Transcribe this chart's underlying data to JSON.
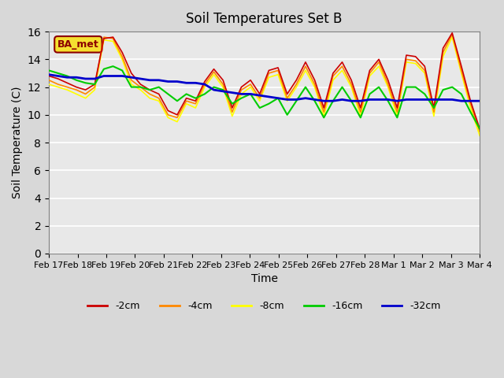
{
  "title": "Soil Temperatures Set B",
  "xlabel": "Time",
  "ylabel": "Soil Temperature (C)",
  "ylim": [
    0,
    16
  ],
  "yticks": [
    0,
    2,
    4,
    6,
    8,
    10,
    12,
    14,
    16
  ],
  "annotation": "BA_met",
  "background_color": "#e8e8e8",
  "colors": {
    "-2cm": "#cc0000",
    "-4cm": "#ff8800",
    "-8cm": "#ffff00",
    "-16cm": "#00cc00",
    "-32cm": "#0000cc"
  },
  "x_tick_labels": [
    "Feb 17",
    "Feb 18",
    "Feb 19",
    "Feb 20",
    "Feb 21",
    "Feb 22",
    "Feb 23",
    "Feb 24",
    "Feb 25",
    "Feb 26",
    "Feb 27",
    "Feb 28",
    "Mar 1",
    "Mar 2",
    "Mar 3",
    "Mar 4"
  ],
  "depths_2cm": [
    12.8,
    12.6,
    12.3,
    12.0,
    11.8,
    12.2,
    15.5,
    15.6,
    14.5,
    13.0,
    12.2,
    11.8,
    11.5,
    10.3,
    10.0,
    11.2,
    11.0,
    12.4,
    13.3,
    12.5,
    10.5,
    12.0,
    12.5,
    11.5,
    13.2,
    13.4,
    11.5,
    12.5,
    13.8,
    12.5,
    10.5,
    13.0,
    13.8,
    12.5,
    10.5,
    13.2,
    14.0,
    12.5,
    10.5,
    14.3,
    14.2,
    13.5,
    10.5,
    14.8,
    15.9,
    13.5,
    11.0,
    9.0
  ],
  "depths_4cm": [
    12.5,
    12.2,
    12.0,
    11.8,
    11.5,
    12.0,
    15.6,
    15.5,
    14.2,
    12.5,
    12.0,
    11.5,
    11.2,
    10.0,
    9.8,
    11.0,
    10.8,
    12.2,
    13.1,
    12.2,
    10.2,
    11.8,
    12.2,
    11.2,
    13.0,
    13.2,
    11.2,
    12.2,
    13.5,
    12.2,
    10.2,
    12.8,
    13.5,
    12.2,
    10.2,
    13.0,
    13.8,
    12.2,
    10.2,
    14.0,
    13.9,
    13.2,
    10.2,
    14.5,
    15.8,
    13.2,
    10.8,
    8.8
  ],
  "depths_8cm": [
    12.2,
    12.0,
    11.8,
    11.5,
    11.2,
    11.8,
    15.4,
    15.3,
    14.0,
    12.2,
    11.8,
    11.2,
    11.0,
    9.8,
    9.5,
    10.8,
    10.5,
    12.0,
    12.9,
    12.0,
    9.9,
    11.5,
    12.0,
    11.0,
    12.7,
    12.9,
    11.0,
    12.0,
    13.2,
    12.0,
    9.9,
    12.5,
    13.2,
    12.0,
    9.9,
    12.8,
    13.5,
    12.0,
    9.9,
    13.8,
    13.7,
    13.0,
    9.9,
    14.2,
    15.6,
    13.0,
    10.5,
    8.5
  ],
  "depths_16cm": [
    13.2,
    13.0,
    12.8,
    12.5,
    12.3,
    12.2,
    13.3,
    13.5,
    13.2,
    12.0,
    12.0,
    11.8,
    12.0,
    11.5,
    11.0,
    11.5,
    11.2,
    11.5,
    12.0,
    11.8,
    10.8,
    11.2,
    11.5,
    10.5,
    10.8,
    11.2,
    10.0,
    11.0,
    12.0,
    11.0,
    9.8,
    11.0,
    12.0,
    11.0,
    9.8,
    11.5,
    12.0,
    11.0,
    9.8,
    12.0,
    12.0,
    11.5,
    10.5,
    11.8,
    12.0,
    11.5,
    10.2,
    9.0
  ],
  "depths_32cm": [
    12.9,
    12.8,
    12.7,
    12.7,
    12.6,
    12.6,
    12.8,
    12.8,
    12.8,
    12.7,
    12.6,
    12.5,
    12.5,
    12.4,
    12.4,
    12.3,
    12.3,
    12.2,
    11.8,
    11.7,
    11.6,
    11.5,
    11.5,
    11.4,
    11.3,
    11.2,
    11.1,
    11.1,
    11.2,
    11.1,
    11.0,
    11.0,
    11.1,
    11.0,
    11.0,
    11.1,
    11.1,
    11.1,
    11.0,
    11.1,
    11.1,
    11.1,
    11.1,
    11.1,
    11.1,
    11.0,
    11.0,
    11.0
  ]
}
